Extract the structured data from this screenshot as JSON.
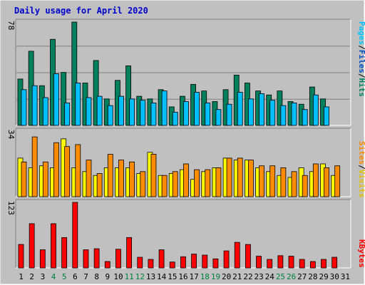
{
  "title": "Daily usage for April 2020",
  "colors": {
    "frame_bg": "#c0c0c0",
    "plot_bg": "#c0c0c0",
    "hits": "#00805c",
    "files": "#00bfff",
    "pages": "#00c4ff",
    "visits": "#ffff00",
    "sites": "#ff8c00",
    "kbytes": "#ff0000",
    "weekend_label": "#008040",
    "weekday_label": "#000000"
  },
  "legend": {
    "top": {
      "pages": "Pages",
      "sep1": "/",
      "files": "Files",
      "sep2": "/",
      "hits": "Hits"
    },
    "middle": {
      "sites": "Sites",
      "sep": "/",
      "visits": "Visits"
    },
    "bottom": {
      "kbytes": "KBytes"
    }
  },
  "chart_data": {
    "type": "bar",
    "categories": [
      "1",
      "2",
      "3",
      "4",
      "5",
      "6",
      "7",
      "8",
      "9",
      "10",
      "11",
      "12",
      "13",
      "14",
      "15",
      "16",
      "17",
      "18",
      "19",
      "20",
      "21",
      "22",
      "23",
      "24",
      "25",
      "26",
      "27",
      "28",
      "29",
      "30",
      "31"
    ],
    "weekend_days": [
      "4",
      "5",
      "11",
      "12",
      "18",
      "19",
      "25",
      "26"
    ],
    "panels": [
      {
        "name": "hits-files",
        "max_label": "78",
        "ylim": [
          0,
          78
        ],
        "series": [
          {
            "name": "Hits",
            "color_key": "hits",
            "values": [
              35,
              56,
              30,
              65,
              40,
              78,
              32,
              49,
              20,
              34,
              45,
              22,
              20,
              27,
              14,
              22,
              31,
              26,
              18,
              27,
              38,
              32,
              26,
              23,
              26,
              18,
              16,
              29,
              20,
              null,
              null
            ]
          },
          {
            "name": "Files",
            "color_key": "files",
            "values": [
              27,
              30,
              21,
              39,
              17,
              32,
              21,
              22,
              15,
              22,
              20,
              19,
              17,
              26,
              10,
              18,
              25,
              17,
              12,
              16,
              25,
              20,
              24,
              19,
              15,
              17,
              12,
              23,
              14,
              null,
              null
            ]
          }
        ]
      },
      {
        "name": "visits-sites",
        "max_label": "34",
        "ylim": [
          0,
          34
        ],
        "series": [
          {
            "name": "Visits",
            "color_key": "visits",
            "values": [
              20,
              15,
              16,
              15,
              30,
              15,
              13,
              11,
              15,
              15,
              15,
              12,
              23,
              11,
              12,
              14,
              9,
              13,
              15,
              20,
              19,
              19,
              15,
              13,
              11,
              10,
              15,
              13,
              17,
              11,
              null
            ]
          },
          {
            "name": "Sites",
            "color_key": "sites",
            "values": [
              18,
              31,
              18,
              28,
              26,
              27,
              19,
              12,
              22,
              19,
              18,
              13,
              22,
              11,
              13,
              17,
              14,
              14,
              15,
              20,
              20,
              19,
              16,
              16,
              15,
              13,
              11,
              17,
              15,
              16,
              null
            ]
          }
        ]
      },
      {
        "name": "kbytes",
        "max_label": "123",
        "ylim": [
          0,
          123
        ],
        "series": [
          {
            "name": "KBytes",
            "color_key": "kbytes",
            "values": [
              44,
              83,
              34,
              83,
              57,
              123,
              34,
              36,
              12,
              35,
              57,
              20,
              16,
              34,
              11,
              21,
              26,
              24,
              17,
              32,
              48,
              44,
              22,
              16,
              23,
              22,
              16,
              12,
              16,
              20,
              null
            ]
          }
        ]
      }
    ]
  }
}
